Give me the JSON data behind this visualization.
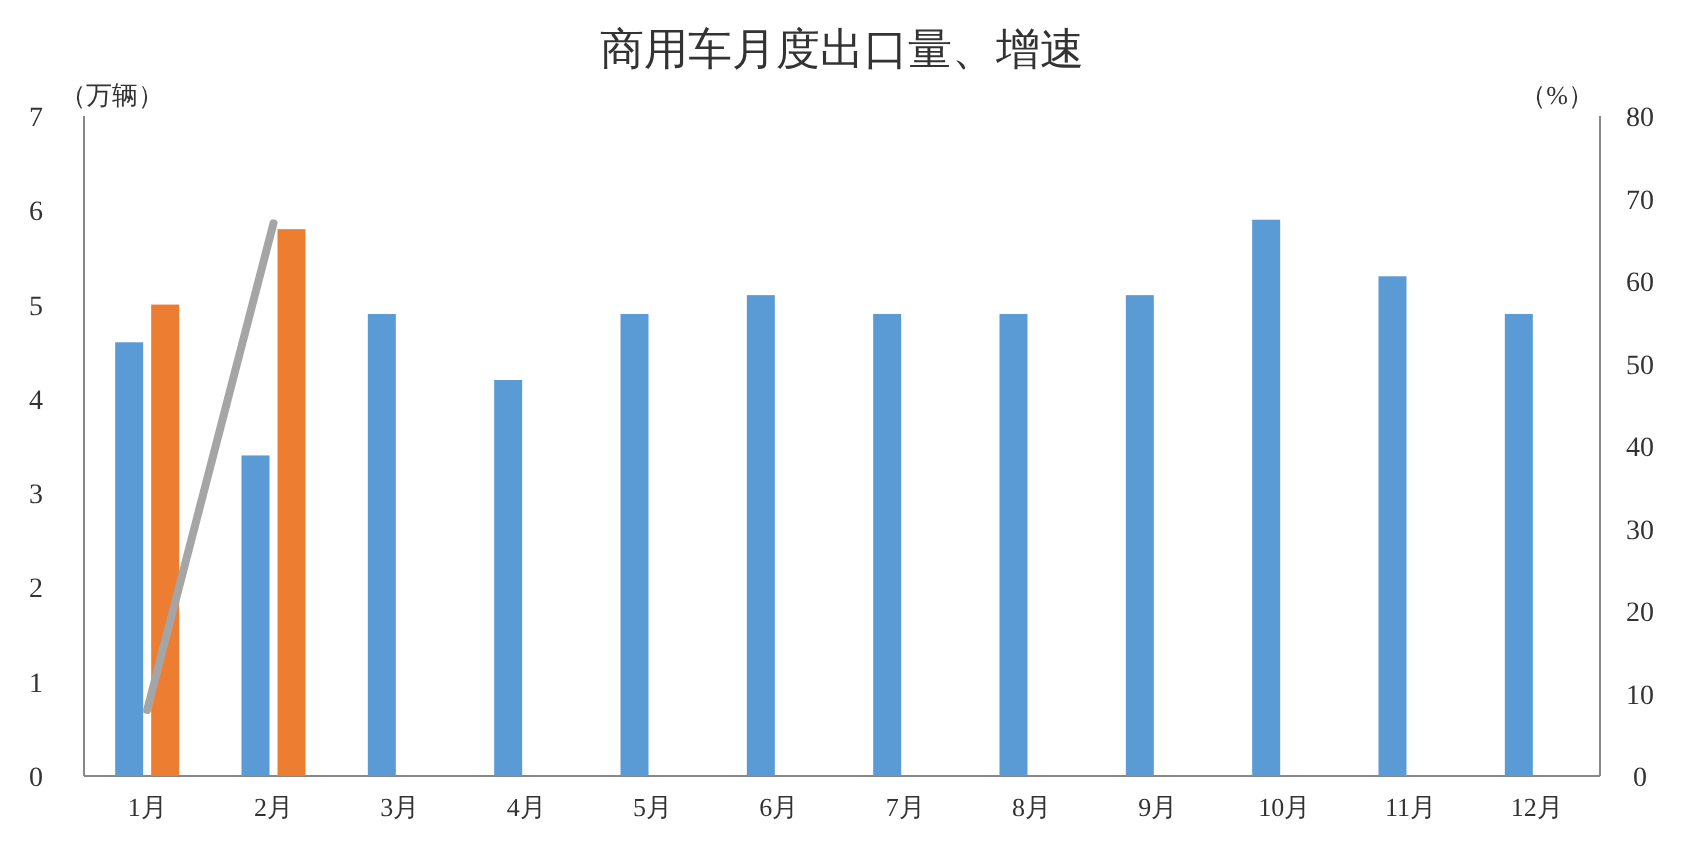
{
  "chart_data": {
    "type": "bar",
    "title": "商用车月度出口量、增速",
    "ylabel": "（万辆）",
    "y2label": "（%）",
    "categories": [
      "1月",
      "2月",
      "3月",
      "4月",
      "5月",
      "6月",
      "7月",
      "8月",
      "9月",
      "10月",
      "11月",
      "12月"
    ],
    "series": [
      {
        "color": "#5b9bd5",
        "values": [
          4.6,
          3.4,
          4.9,
          4.2,
          4.9,
          5.1,
          4.9,
          4.9,
          5.1,
          5.9,
          5.3,
          4.9
        ]
      },
      {
        "color": "#ed7d31",
        "values": [
          5.0,
          5.8,
          null,
          null,
          null,
          null,
          null,
          null,
          null,
          null,
          null,
          null
        ]
      },
      {
        "type": "line",
        "axis": "y2",
        "color": "#a5a5a5",
        "values": [
          8,
          67,
          null,
          null,
          null,
          null,
          null,
          null,
          null,
          null,
          null,
          null
        ]
      }
    ],
    "ylim": [
      0,
      7
    ],
    "yticks": [
      0,
      1,
      2,
      3,
      4,
      5,
      6,
      7
    ],
    "y2lim": [
      0,
      80
    ],
    "y2ticks": [
      0,
      10,
      20,
      30,
      40,
      50,
      60,
      70,
      80
    ]
  }
}
